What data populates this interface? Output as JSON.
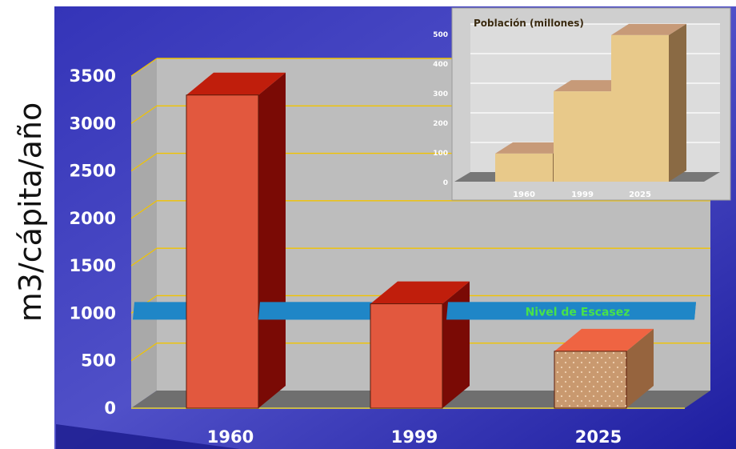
{
  "chart_data": [
    {
      "type": "bar",
      "title": "",
      "xlabel": "",
      "ylabel": "m3/cápita/año",
      "categories": [
        "1960",
        "1999",
        "2025"
      ],
      "values": [
        3300,
        1100,
        600
      ],
      "ylim": [
        0,
        3500
      ],
      "yticks": [
        "0",
        "500",
        "1000",
        "1500",
        "2000",
        "2500",
        "3000",
        "3500"
      ],
      "grid": true,
      "annotations": [
        {
          "text": "Nivel de Escasez",
          "value": 1000
        }
      ],
      "colors": {
        "bar_front": "#e2583e",
        "bar_top": "#c01e0c",
        "bar_side": "#7a0a05",
        "projected_front": "#c9996f",
        "projected_top": "#ef6442",
        "projected_side": "#96643e",
        "scarcity_band": "#1f86c7",
        "scarcity_text": "#48e24a",
        "plot_back": "#bdbdbd",
        "grid": "#f2c400",
        "background": "#2a2aa8"
      }
    },
    {
      "type": "bar",
      "title": "Población (millones)",
      "categories": [
        "1960",
        "1999",
        "2025"
      ],
      "values": [
        95,
        305,
        495
      ],
      "ylim": [
        0,
        500
      ],
      "yticks": [
        "0",
        "100",
        "200",
        "300",
        "400",
        "500"
      ],
      "grid": true,
      "colors": {
        "bar_front": "#e8c98a",
        "bar_top": "#c79a78",
        "bar_side": "#8a6a44",
        "plot_back": "#dcdcdc"
      }
    }
  ]
}
